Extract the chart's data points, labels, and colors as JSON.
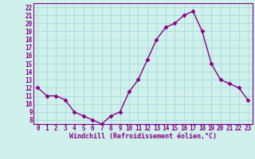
{
  "x": [
    0,
    1,
    2,
    3,
    4,
    5,
    6,
    7,
    8,
    9,
    10,
    11,
    12,
    13,
    14,
    15,
    16,
    17,
    18,
    19,
    20,
    21,
    22,
    23
  ],
  "y": [
    12,
    11,
    11,
    10.5,
    9,
    8.5,
    8,
    7.5,
    8.5,
    9,
    11.5,
    13,
    15.5,
    18,
    19.5,
    20,
    21,
    21.5,
    19,
    15,
    13,
    12.5,
    12,
    10.5
  ],
  "line_color": "#880088",
  "marker": "D",
  "marker_size": 2.5,
  "bg_color": "#cff0eb",
  "grid_color": "#aadddd",
  "xlabel": "Windchill (Refroidissement éolien,°C)",
  "xlabel_color": "#880088",
  "tick_color": "#880088",
  "ylim": [
    7.5,
    22.5
  ],
  "xlim": [
    -0.5,
    23.5
  ],
  "yticks": [
    8,
    9,
    10,
    11,
    12,
    13,
    14,
    15,
    16,
    17,
    18,
    19,
    20,
    21,
    22
  ],
  "xticks": [
    0,
    1,
    2,
    3,
    4,
    5,
    6,
    7,
    8,
    9,
    10,
    11,
    12,
    13,
    14,
    15,
    16,
    17,
    18,
    19,
    20,
    21,
    22,
    23
  ],
  "tick_fontsize": 5.5,
  "xlabel_fontsize": 6,
  "linewidth": 1.0
}
